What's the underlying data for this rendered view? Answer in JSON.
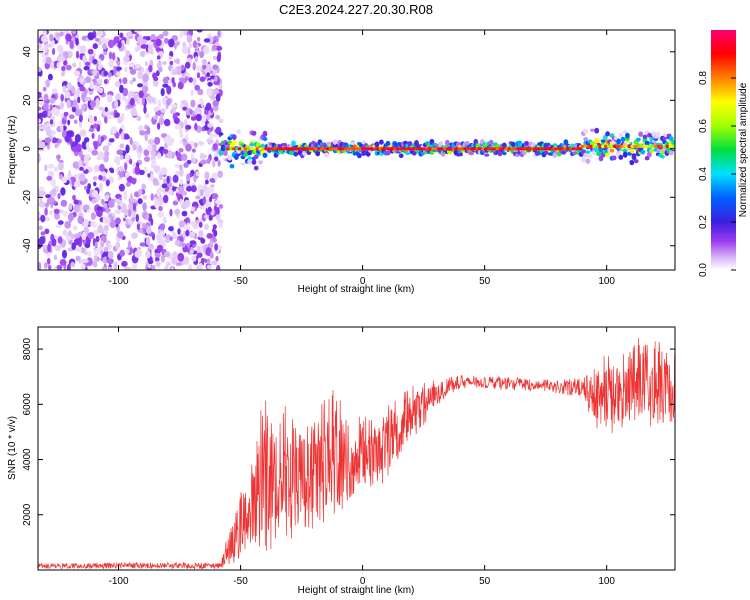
{
  "title": "C2E3.2024.227.20.30.R08",
  "chart_data": [
    {
      "type": "heatmap",
      "xlabel": "Height of straight line (km)",
      "ylabel": "Frequency (Hz)",
      "xlim": [
        -133,
        128
      ],
      "ylim": [
        -50,
        49
      ],
      "xticks": [
        -100,
        -50,
        0,
        50,
        100
      ],
      "yticks": [
        -40,
        -20,
        0,
        20,
        40
      ],
      "colorbar": {
        "label": "Normalized spectral amplitude",
        "range": [
          0.0,
          1.0
        ],
        "ticks": [
          0.0,
          0.2,
          0.4,
          0.6,
          0.8
        ],
        "colors": [
          "#ffffff",
          "#d9b8f5",
          "#9a3cf0",
          "#3a1fe0",
          "#0060ff",
          "#00e0ff",
          "#00e040",
          "#a0ff00",
          "#ffff00",
          "#ff8000",
          "#ff0000",
          "#ff0070"
        ]
      },
      "regions": [
        {
          "x_range": [
            -133,
            -58
          ],
          "freq_range": [
            -50,
            49
          ],
          "amplitude": "low (0.05-0.25), noise"
        },
        {
          "x_range": [
            -58,
            -40
          ],
          "freq_range": [
            -8,
            8
          ],
          "amplitude": "0.2-1.0"
        },
        {
          "x_range": [
            -40,
            90
          ],
          "freq_range": [
            -2,
            3
          ],
          "amplitude": "0.6-1.0",
          "center_freq": 0
        },
        {
          "x_range": [
            90,
            128
          ],
          "freq_range": [
            -5,
            8
          ],
          "amplitude": "0.3-1.0",
          "center_freq": 1
        }
      ]
    },
    {
      "type": "line",
      "xlabel": "Height of straight line (km)",
      "ylabel": "SNR (10 * v/v)",
      "xlim": [
        -133,
        128
      ],
      "ylim": [
        0,
        8800
      ],
      "xticks": [
        -100,
        -50,
        0,
        50,
        100
      ],
      "yticks": [
        2000,
        4000,
        6000,
        8000
      ],
      "color": "#ee3333",
      "envelope": {
        "x": [
          -133,
          -80,
          -58,
          -55,
          -50,
          -45,
          -40,
          -35,
          -30,
          -25,
          -20,
          -15,
          -10,
          -5,
          0,
          5,
          10,
          15,
          20,
          25,
          30,
          35,
          40,
          50,
          60,
          70,
          80,
          90,
          95,
          100,
          105,
          110,
          115,
          120,
          125,
          128
        ],
        "min": [
          50,
          50,
          40,
          150,
          400,
          700,
          600,
          800,
          1000,
          1200,
          1300,
          1700,
          1900,
          2300,
          2800,
          3000,
          3200,
          4000,
          4500,
          5200,
          5800,
          6300,
          6500,
          6600,
          6500,
          6500,
          6400,
          6200,
          5200,
          4800,
          5000,
          5200,
          4800,
          5000,
          5200,
          5400
        ],
        "max": [
          250,
          280,
          250,
          1500,
          3000,
          4000,
          6700,
          6200,
          6000,
          5000,
          5500,
          6300,
          6700,
          5000,
          5800,
          5400,
          6000,
          6300,
          6700,
          6800,
          6900,
          7000,
          7100,
          7000,
          7000,
          6900,
          6900,
          7000,
          7300,
          8000,
          7800,
          8000,
          8700,
          8400,
          8000,
          7800
        ]
      }
    }
  ]
}
